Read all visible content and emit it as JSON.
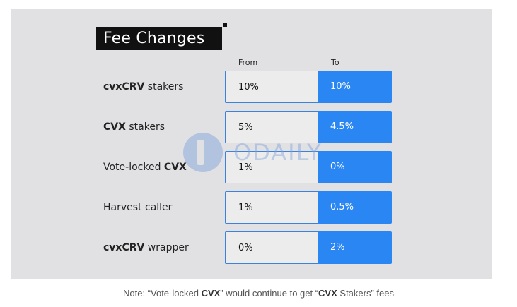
{
  "title": "Fee Changes",
  "columns": {
    "from": "From",
    "to": "To"
  },
  "rows": [
    {
      "label_bold": "cvxCRV",
      "label_rest": " stakers",
      "from": "10%",
      "to": "10%"
    },
    {
      "label_bold": "CVX",
      "label_rest": " stakers",
      "from": "5%",
      "to": "4.5%"
    },
    {
      "label_pre": "Vote-locked ",
      "label_bold": "CVX",
      "from": "1%",
      "to": "0%"
    },
    {
      "label_plain": "Harvest caller",
      "from": "1%",
      "to": "0.5%"
    },
    {
      "label_bold": "cvxCRV",
      "label_rest": " wrapper",
      "from": "0%",
      "to": "2%"
    }
  ],
  "watermark": "ODAILY",
  "note": {
    "p1": "Note: “Vote-locked ",
    "b1": "CVX",
    "p2": "” would continue to get “",
    "b2": "CVX",
    "p3": " Stakers” fees"
  },
  "colors": {
    "panel_bg": "#e1e0e3",
    "to_cell": "#2a86f3",
    "from_cell": "#ececed",
    "title_bg": "#111111"
  }
}
